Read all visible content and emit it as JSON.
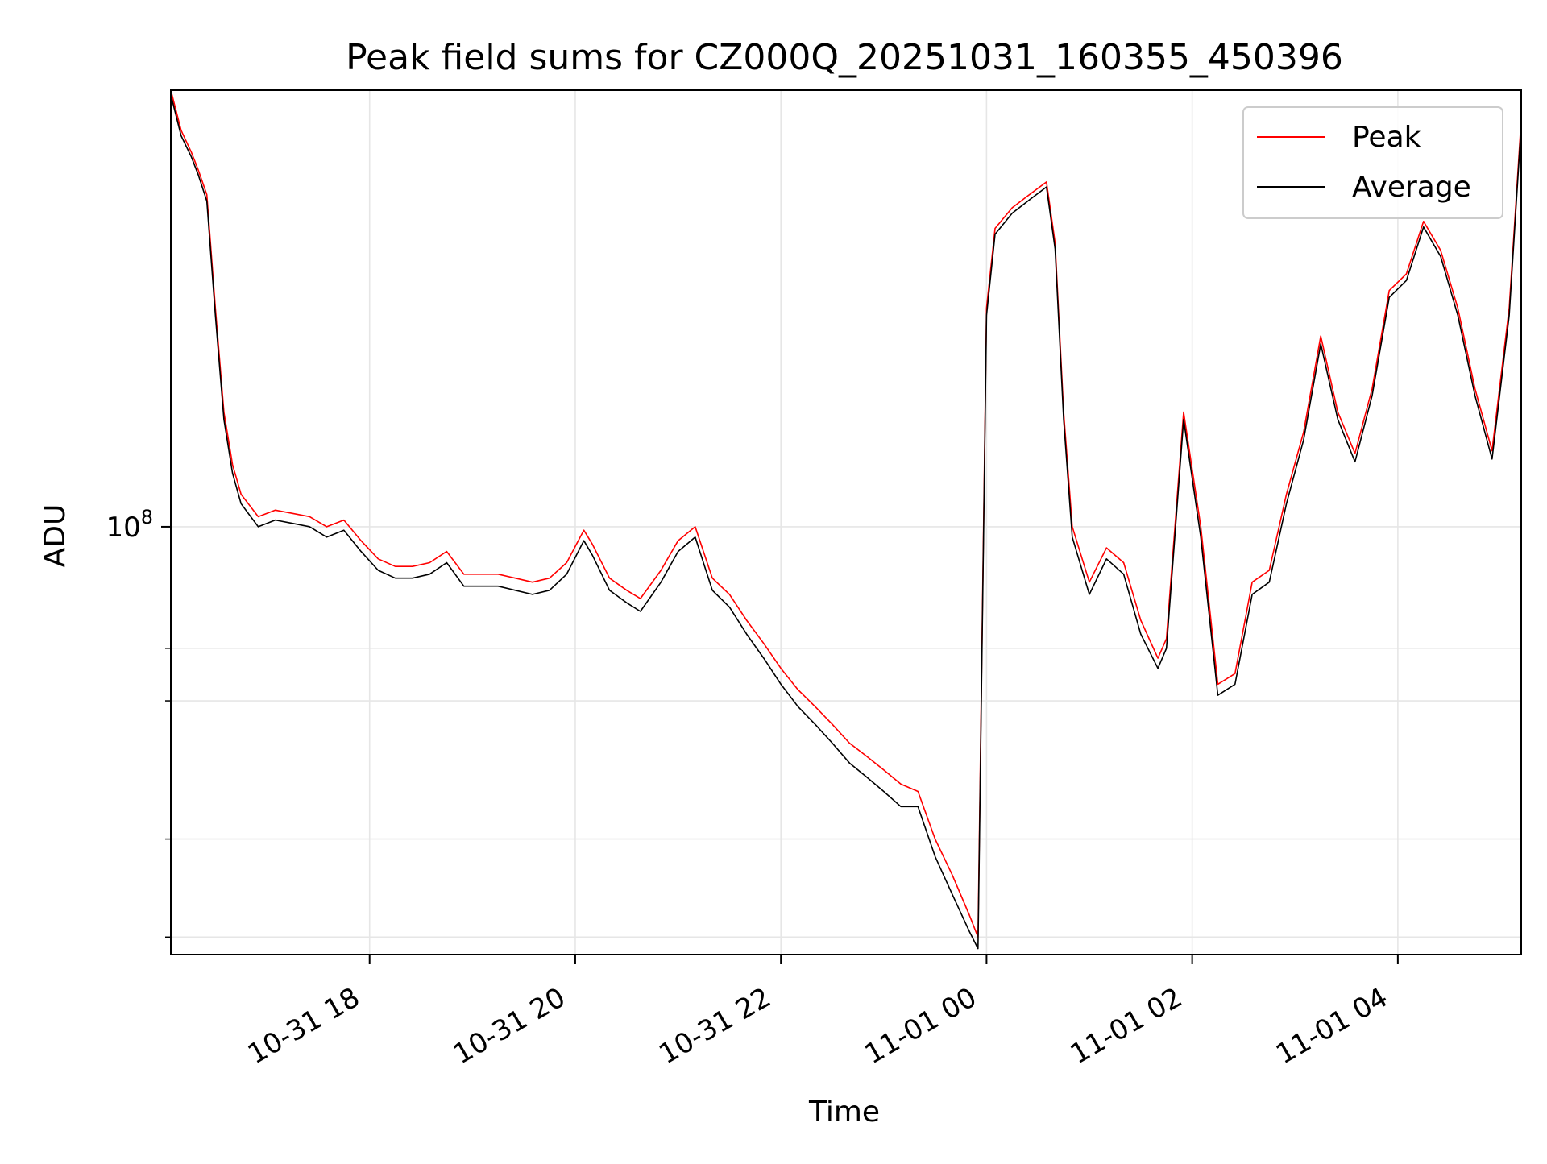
{
  "chart_data": {
    "type": "line",
    "title": "Peak field sums for CZ000Q_20251031_160355_450396",
    "xlabel": "Time",
    "ylabel": "ADU",
    "x_axis": {
      "type": "time",
      "range": [
        "2025-10-31 16:04",
        "2025-11-01 05:12"
      ],
      "ticks": [
        {
          "t": "2025-10-31 18:00",
          "label": "10-31 18"
        },
        {
          "t": "2025-10-31 20:00",
          "label": "10-31 20"
        },
        {
          "t": "2025-10-31 22:00",
          "label": "10-31 22"
        },
        {
          "t": "2025-11-01 00:00",
          "label": "11-01 00"
        },
        {
          "t": "2025-11-01 02:00",
          "label": "11-01 02"
        },
        {
          "t": "2025-11-01 04:00",
          "label": "11-01 04"
        }
      ]
    },
    "y_axis": {
      "scale": "log",
      "range": [
        28500000,
        360000000
      ],
      "major_ticks": [
        {
          "v": 100000000,
          "label_base": "10",
          "label_exp": "8"
        }
      ],
      "minor_ticks": [
        30000000,
        40000000,
        60000000,
        70000000
      ]
    },
    "grid": true,
    "legend": {
      "position": "top-right",
      "entries": [
        "Peak",
        "Average"
      ]
    },
    "colors": {
      "Peak": "#ff0000",
      "Average": "#000000"
    },
    "series": [
      {
        "name": "Peak",
        "color": "#ff0000",
        "points": [
          [
            "2025-10-31 16:04",
            360000000
          ],
          [
            "2025-10-31 16:10",
            320000000
          ],
          [
            "2025-10-31 16:16",
            300000000
          ],
          [
            "2025-10-31 16:20",
            285000000
          ],
          [
            "2025-10-31 16:25",
            265000000
          ],
          [
            "2025-10-31 16:30",
            190000000
          ],
          [
            "2025-10-31 16:35",
            140000000
          ],
          [
            "2025-10-31 16:40",
            120000000
          ],
          [
            "2025-10-31 16:45",
            110000000
          ],
          [
            "2025-10-31 16:55",
            103000000
          ],
          [
            "2025-10-31 17:05",
            105000000
          ],
          [
            "2025-10-31 17:15",
            104000000
          ],
          [
            "2025-10-31 17:25",
            103000000
          ],
          [
            "2025-10-31 17:35",
            100000000
          ],
          [
            "2025-10-31 17:45",
            102000000
          ],
          [
            "2025-10-31 17:55",
            96000000
          ],
          [
            "2025-10-31 18:05",
            91000000
          ],
          [
            "2025-10-31 18:15",
            89000000
          ],
          [
            "2025-10-31 18:25",
            89000000
          ],
          [
            "2025-10-31 18:35",
            90000000
          ],
          [
            "2025-10-31 18:45",
            93000000
          ],
          [
            "2025-10-31 18:55",
            87000000
          ],
          [
            "2025-10-31 19:05",
            87000000
          ],
          [
            "2025-10-31 19:15",
            87000000
          ],
          [
            "2025-10-31 19:25",
            86000000
          ],
          [
            "2025-10-31 19:35",
            85000000
          ],
          [
            "2025-10-31 19:45",
            86000000
          ],
          [
            "2025-10-31 19:55",
            90000000
          ],
          [
            "2025-10-31 20:05",
            99000000
          ],
          [
            "2025-10-31 20:10",
            95000000
          ],
          [
            "2025-10-31 20:20",
            86000000
          ],
          [
            "2025-10-31 20:30",
            83000000
          ],
          [
            "2025-10-31 20:38",
            81000000
          ],
          [
            "2025-10-31 20:50",
            88000000
          ],
          [
            "2025-10-31 21:00",
            96000000
          ],
          [
            "2025-10-31 21:10",
            100000000
          ],
          [
            "2025-10-31 21:20",
            86000000
          ],
          [
            "2025-10-31 21:30",
            82000000
          ],
          [
            "2025-10-31 21:40",
            76000000
          ],
          [
            "2025-10-31 21:50",
            71000000
          ],
          [
            "2025-10-31 22:00",
            66000000
          ],
          [
            "2025-10-31 22:10",
            62000000
          ],
          [
            "2025-10-31 22:20",
            59000000
          ],
          [
            "2025-10-31 22:30",
            56000000
          ],
          [
            "2025-10-31 22:40",
            53000000
          ],
          [
            "2025-10-31 22:50",
            51000000
          ],
          [
            "2025-10-31 23:00",
            49000000
          ],
          [
            "2025-10-31 23:10",
            47000000
          ],
          [
            "2025-10-31 23:20",
            46000000
          ],
          [
            "2025-10-31 23:30",
            40000000
          ],
          [
            "2025-10-31 23:40",
            36000000
          ],
          [
            "2025-10-31 23:50",
            32000000
          ],
          [
            "2025-10-31 23:55",
            30000000
          ],
          [
            "2025-11-01 00:00",
            190000000
          ],
          [
            "2025-11-01 00:05",
            240000000
          ],
          [
            "2025-11-01 00:15",
            255000000
          ],
          [
            "2025-11-01 00:25",
            265000000
          ],
          [
            "2025-11-01 00:35",
            275000000
          ],
          [
            "2025-11-01 00:40",
            230000000
          ],
          [
            "2025-11-01 00:45",
            140000000
          ],
          [
            "2025-11-01 00:50",
            100000000
          ],
          [
            "2025-11-01 01:00",
            85000000
          ],
          [
            "2025-11-01 01:10",
            94000000
          ],
          [
            "2025-11-01 01:20",
            90000000
          ],
          [
            "2025-11-01 01:30",
            76000000
          ],
          [
            "2025-11-01 01:40",
            68000000
          ],
          [
            "2025-11-01 01:45",
            72000000
          ],
          [
            "2025-11-01 01:55",
            140000000
          ],
          [
            "2025-11-01 02:05",
            100000000
          ],
          [
            "2025-11-01 02:15",
            63000000
          ],
          [
            "2025-11-01 02:25",
            65000000
          ],
          [
            "2025-11-01 02:35",
            85000000
          ],
          [
            "2025-11-01 02:45",
            88000000
          ],
          [
            "2025-11-01 02:55",
            110000000
          ],
          [
            "2025-11-01 03:05",
            132000000
          ],
          [
            "2025-11-01 03:15",
            175000000
          ],
          [
            "2025-11-01 03:25",
            140000000
          ],
          [
            "2025-11-01 03:35",
            124000000
          ],
          [
            "2025-11-01 03:45",
            150000000
          ],
          [
            "2025-11-01 03:55",
            200000000
          ],
          [
            "2025-11-01 04:05",
            210000000
          ],
          [
            "2025-11-01 04:15",
            245000000
          ],
          [
            "2025-11-01 04:25",
            225000000
          ],
          [
            "2025-11-01 04:35",
            190000000
          ],
          [
            "2025-11-01 04:45",
            150000000
          ],
          [
            "2025-11-01 04:55",
            125000000
          ],
          [
            "2025-11-01 05:05",
            190000000
          ],
          [
            "2025-11-01 05:12",
            330000000
          ]
        ]
      },
      {
        "name": "Average",
        "color": "#000000",
        "points": [
          [
            "2025-10-31 16:04",
            355000000
          ],
          [
            "2025-10-31 16:10",
            315000000
          ],
          [
            "2025-10-31 16:16",
            296000000
          ],
          [
            "2025-10-31 16:20",
            281000000
          ],
          [
            "2025-10-31 16:25",
            260000000
          ],
          [
            "2025-10-31 16:30",
            186000000
          ],
          [
            "2025-10-31 16:35",
            137000000
          ],
          [
            "2025-10-31 16:40",
            117000000
          ],
          [
            "2025-10-31 16:45",
            107000000
          ],
          [
            "2025-10-31 16:55",
            100000000
          ],
          [
            "2025-10-31 17:05",
            102000000
          ],
          [
            "2025-10-31 17:15",
            101000000
          ],
          [
            "2025-10-31 17:25",
            100000000
          ],
          [
            "2025-10-31 17:35",
            97000000
          ],
          [
            "2025-10-31 17:45",
            99000000
          ],
          [
            "2025-10-31 17:55",
            93000000
          ],
          [
            "2025-10-31 18:05",
            88000000
          ],
          [
            "2025-10-31 18:15",
            86000000
          ],
          [
            "2025-10-31 18:25",
            86000000
          ],
          [
            "2025-10-31 18:35",
            87000000
          ],
          [
            "2025-10-31 18:45",
            90000000
          ],
          [
            "2025-10-31 18:55",
            84000000
          ],
          [
            "2025-10-31 19:05",
            84000000
          ],
          [
            "2025-10-31 19:15",
            84000000
          ],
          [
            "2025-10-31 19:25",
            83000000
          ],
          [
            "2025-10-31 19:35",
            82000000
          ],
          [
            "2025-10-31 19:45",
            83000000
          ],
          [
            "2025-10-31 19:55",
            87000000
          ],
          [
            "2025-10-31 20:05",
            96000000
          ],
          [
            "2025-10-31 20:10",
            92000000
          ],
          [
            "2025-10-31 20:20",
            83000000
          ],
          [
            "2025-10-31 20:30",
            80000000
          ],
          [
            "2025-10-31 20:38",
            78000000
          ],
          [
            "2025-10-31 20:50",
            85000000
          ],
          [
            "2025-10-31 21:00",
            93000000
          ],
          [
            "2025-10-31 21:10",
            97000000
          ],
          [
            "2025-10-31 21:20",
            83000000
          ],
          [
            "2025-10-31 21:30",
            79000000
          ],
          [
            "2025-10-31 21:40",
            73000000
          ],
          [
            "2025-10-31 21:50",
            68000000
          ],
          [
            "2025-10-31 22:00",
            63000000
          ],
          [
            "2025-10-31 22:10",
            59000000
          ],
          [
            "2025-10-31 22:20",
            56000000
          ],
          [
            "2025-10-31 22:30",
            53000000
          ],
          [
            "2025-10-31 22:40",
            50000000
          ],
          [
            "2025-10-31 22:50",
            48000000
          ],
          [
            "2025-10-31 23:00",
            46000000
          ],
          [
            "2025-10-31 23:10",
            44000000
          ],
          [
            "2025-10-31 23:20",
            44000000
          ],
          [
            "2025-10-31 23:30",
            38000000
          ],
          [
            "2025-10-31 23:40",
            34000000
          ],
          [
            "2025-10-31 23:50",
            30500000
          ],
          [
            "2025-10-31 23:55",
            29000000
          ],
          [
            "2025-11-01 00:00",
            186000000
          ],
          [
            "2025-11-01 00:05",
            236000000
          ],
          [
            "2025-11-01 00:15",
            251000000
          ],
          [
            "2025-11-01 00:25",
            261000000
          ],
          [
            "2025-11-01 00:35",
            271000000
          ],
          [
            "2025-11-01 00:40",
            226000000
          ],
          [
            "2025-11-01 00:45",
            137000000
          ],
          [
            "2025-11-01 00:50",
            97000000
          ],
          [
            "2025-11-01 01:00",
            82000000
          ],
          [
            "2025-11-01 01:10",
            91000000
          ],
          [
            "2025-11-01 01:20",
            87000000
          ],
          [
            "2025-11-01 01:30",
            73000000
          ],
          [
            "2025-11-01 01:40",
            66000000
          ],
          [
            "2025-11-01 01:45",
            70000000
          ],
          [
            "2025-11-01 01:55",
            137000000
          ],
          [
            "2025-11-01 02:05",
            97000000
          ],
          [
            "2025-11-01 02:15",
            61000000
          ],
          [
            "2025-11-01 02:25",
            63000000
          ],
          [
            "2025-11-01 02:35",
            82000000
          ],
          [
            "2025-11-01 02:45",
            85000000
          ],
          [
            "2025-11-01 02:55",
            107000000
          ],
          [
            "2025-11-01 03:05",
            129000000
          ],
          [
            "2025-11-01 03:15",
            171000000
          ],
          [
            "2025-11-01 03:25",
            137000000
          ],
          [
            "2025-11-01 03:35",
            121000000
          ],
          [
            "2025-11-01 03:45",
            147000000
          ],
          [
            "2025-11-01 03:55",
            196000000
          ],
          [
            "2025-11-01 04:05",
            206000000
          ],
          [
            "2025-11-01 04:15",
            241000000
          ],
          [
            "2025-11-01 04:25",
            221000000
          ],
          [
            "2025-11-01 04:35",
            186000000
          ],
          [
            "2025-11-01 04:45",
            147000000
          ],
          [
            "2025-11-01 04:55",
            122000000
          ],
          [
            "2025-11-01 05:05",
            186000000
          ],
          [
            "2025-11-01 05:12",
            325000000
          ]
        ]
      }
    ]
  }
}
